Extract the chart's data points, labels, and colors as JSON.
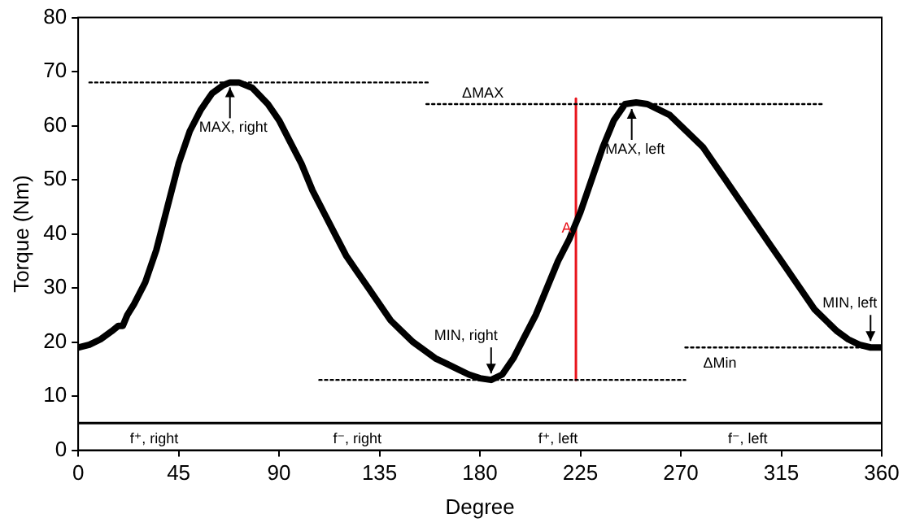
{
  "chart_data": {
    "type": "line",
    "xlabel": "Degree",
    "ylabel": "Torque (Nm)",
    "xlim": [
      0,
      360
    ],
    "xticks": [
      0,
      45,
      90,
      135,
      180,
      225,
      270,
      315,
      360
    ],
    "ylim": [
      0,
      80
    ],
    "yticks": [
      0,
      10,
      20,
      30,
      40,
      50,
      60,
      70,
      80
    ],
    "grid": false,
    "legend": false,
    "marker": "none",
    "series": [
      {
        "color": "#000000",
        "x": [
          0,
          5,
          10,
          15,
          18,
          20,
          22,
          25,
          30,
          35,
          40,
          45,
          50,
          55,
          60,
          65,
          68,
          72,
          78,
          85,
          90,
          95,
          100,
          105,
          110,
          115,
          120,
          125,
          130,
          135,
          140,
          145,
          150,
          155,
          160,
          165,
          170,
          175,
          180,
          185,
          190,
          195,
          200,
          205,
          210,
          215,
          220,
          225,
          230,
          235,
          240,
          245,
          250,
          255,
          260,
          265,
          270,
          275,
          280,
          285,
          290,
          295,
          300,
          305,
          310,
          315,
          320,
          325,
          330,
          335,
          340,
          345,
          350,
          355,
          360
        ],
        "values": [
          19,
          19.5,
          20.5,
          22,
          23,
          23,
          25,
          27,
          31,
          37,
          45,
          53,
          59,
          63,
          66,
          67.5,
          68,
          68,
          67,
          64,
          61,
          57,
          53,
          48,
          44,
          40,
          36,
          33,
          30,
          27,
          24,
          22,
          20,
          18.5,
          17,
          16,
          15,
          14,
          13.3,
          13,
          14,
          17,
          21,
          25,
          30,
          35,
          39,
          44,
          50,
          56,
          61,
          64,
          64.3,
          64,
          63,
          62,
          60,
          58,
          56,
          53,
          50,
          47,
          44,
          41,
          38,
          35,
          32,
          29,
          26,
          24,
          22,
          20.5,
          19.5,
          19,
          19
        ]
      },
      {
        "color": "#000000",
        "line_style": "dotted",
        "x": [
          5,
          158
        ],
        "values": [
          68,
          68
        ]
      },
      {
        "color": "#000000",
        "line_style": "dotted",
        "x": [
          156,
          334
        ],
        "values": [
          64,
          64
        ]
      },
      {
        "color": "#000000",
        "line_style": "dotted",
        "x": [
          108,
          272
        ],
        "values": [
          13,
          13
        ]
      },
      {
        "color": "#000000",
        "line_style": "dotted",
        "x": [
          272,
          360
        ],
        "values": [
          19,
          19
        ]
      },
      {
        "color": "#000000",
        "x": [
          0,
          360
        ],
        "values": [
          5,
          5
        ]
      },
      {
        "color": "#e8141c",
        "x": [
          223,
          223
        ],
        "values": [
          13,
          65
        ]
      }
    ],
    "annotations": [
      {
        "text": "MAX, right",
        "x": 68,
        "y": 68
      },
      {
        "text": "MAX, left",
        "x": 248,
        "y": 64
      },
      {
        "text": "MIN, right",
        "x": 185,
        "y": 13
      },
      {
        "text": "MIN, left",
        "x": 355,
        "y": 19
      },
      "ΔMAX",
      "ΔMin",
      "A",
      "f⁺, right",
      "f⁻, right",
      "f⁺, left",
      "f⁻, left"
    ]
  }
}
